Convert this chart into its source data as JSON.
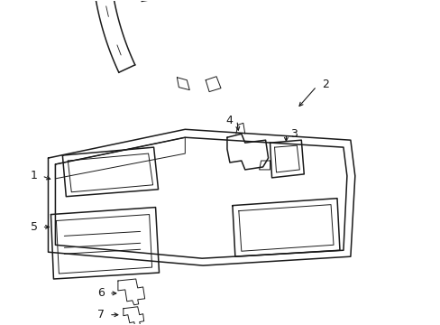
{
  "background_color": "#ffffff",
  "line_color": "#1a1a1a",
  "line_width": 1.1,
  "thin_lw": 0.7,
  "label_fontsize": 9,
  "figsize": [
    4.89,
    3.6
  ],
  "dpi": 100
}
